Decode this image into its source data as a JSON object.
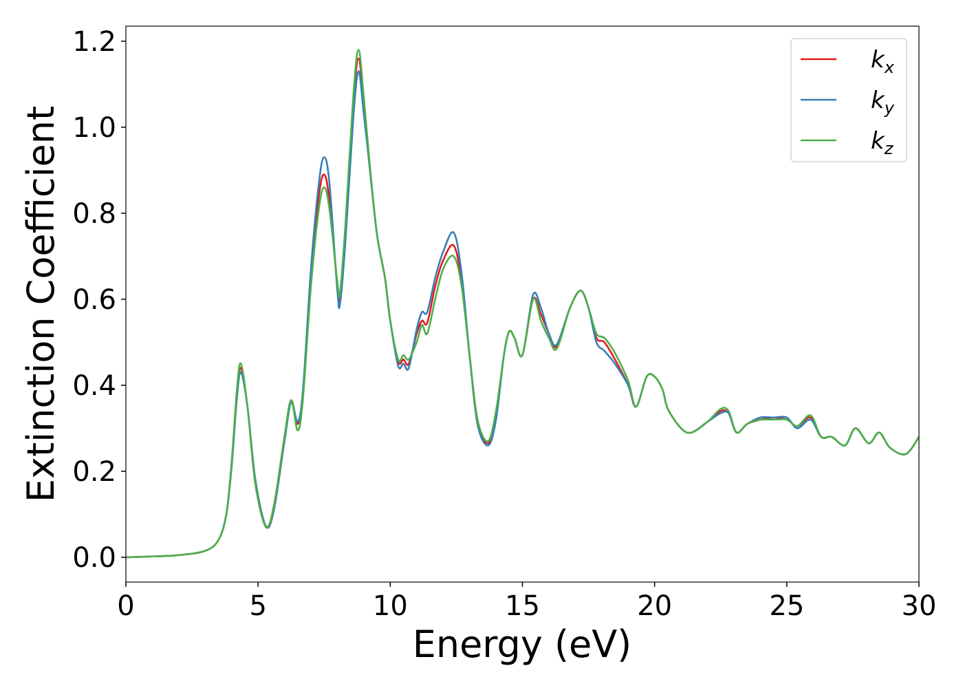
{
  "chart_data": {
    "type": "line",
    "xlabel": "Energy (eV)",
    "ylabel": "Extinction Coefficient",
    "x": [
      0,
      1,
      2,
      3,
      3.5,
      3.8,
      4.0,
      4.2,
      4.35,
      4.6,
      4.9,
      5.3,
      5.6,
      6.0,
      6.25,
      6.5,
      6.7,
      7.0,
      7.3,
      7.5,
      7.7,
      8.0,
      8.1,
      8.3,
      8.6,
      8.8,
      9.0,
      9.2,
      9.5,
      9.8,
      10.0,
      10.3,
      10.5,
      10.7,
      11.0,
      11.2,
      11.4,
      11.7,
      12.0,
      12.4,
      12.7,
      13.0,
      13.3,
      13.7,
      14.0,
      14.3,
      14.5,
      14.7,
      15.0,
      15.4,
      15.7,
      16.0,
      16.3,
      16.8,
      17.2,
      17.5,
      17.8,
      18.1,
      18.5,
      19.0,
      19.3,
      19.7,
      20.0,
      20.3,
      20.5,
      21.0,
      21.4,
      22.0,
      22.5,
      22.8,
      23.1,
      23.5,
      24.0,
      24.5,
      25.0,
      25.4,
      25.9,
      26.3,
      26.7,
      27.2,
      27.6,
      28.1,
      28.5,
      28.9,
      29.5,
      30.0
    ],
    "series": [
      {
        "name": "kx",
        "color": "#e41a1c",
        "values": [
          0,
          0.002,
          0.005,
          0.015,
          0.04,
          0.1,
          0.22,
          0.38,
          0.44,
          0.35,
          0.17,
          0.072,
          0.12,
          0.28,
          0.365,
          0.31,
          0.38,
          0.65,
          0.84,
          0.89,
          0.83,
          0.63,
          0.605,
          0.75,
          1.05,
          1.16,
          1.05,
          0.92,
          0.75,
          0.65,
          0.55,
          0.455,
          0.46,
          0.45,
          0.52,
          0.55,
          0.545,
          0.63,
          0.69,
          0.725,
          0.64,
          0.47,
          0.32,
          0.265,
          0.33,
          0.47,
          0.525,
          0.51,
          0.47,
          0.6,
          0.565,
          0.52,
          0.49,
          0.58,
          0.62,
          0.58,
          0.51,
          0.5,
          0.46,
          0.4,
          0.35,
          0.42,
          0.42,
          0.39,
          0.345,
          0.3,
          0.29,
          0.315,
          0.34,
          0.335,
          0.29,
          0.31,
          0.32,
          0.325,
          0.32,
          0.305,
          0.325,
          0.28,
          0.28,
          0.26,
          0.3,
          0.265,
          0.29,
          0.255,
          0.24,
          0.28
        ]
      },
      {
        "name": "ky",
        "color": "#377eb8",
        "values": [
          0,
          0.002,
          0.005,
          0.015,
          0.04,
          0.1,
          0.21,
          0.37,
          0.43,
          0.35,
          0.18,
          0.072,
          0.11,
          0.27,
          0.36,
          0.315,
          0.39,
          0.67,
          0.87,
          0.93,
          0.87,
          0.62,
          0.59,
          0.73,
          1.02,
          1.13,
          1.03,
          0.92,
          0.75,
          0.65,
          0.55,
          0.445,
          0.45,
          0.44,
          0.53,
          0.57,
          0.57,
          0.65,
          0.71,
          0.755,
          0.66,
          0.47,
          0.31,
          0.26,
          0.32,
          0.47,
          0.525,
          0.51,
          0.47,
          0.61,
          0.58,
          0.52,
          0.495,
          0.58,
          0.62,
          0.58,
          0.5,
          0.48,
          0.45,
          0.4,
          0.35,
          0.42,
          0.42,
          0.39,
          0.345,
          0.3,
          0.29,
          0.315,
          0.335,
          0.335,
          0.29,
          0.31,
          0.325,
          0.325,
          0.325,
          0.3,
          0.32,
          0.28,
          0.28,
          0.26,
          0.3,
          0.265,
          0.29,
          0.255,
          0.24,
          0.28
        ]
      },
      {
        "name": "kz",
        "color": "#4daf4a",
        "values": [
          0,
          0.002,
          0.005,
          0.015,
          0.04,
          0.1,
          0.22,
          0.39,
          0.45,
          0.35,
          0.17,
          0.07,
          0.12,
          0.28,
          0.365,
          0.295,
          0.37,
          0.63,
          0.81,
          0.86,
          0.81,
          0.64,
          0.615,
          0.77,
          1.07,
          1.18,
          1.07,
          0.93,
          0.75,
          0.65,
          0.55,
          0.46,
          0.47,
          0.46,
          0.5,
          0.54,
          0.52,
          0.6,
          0.67,
          0.7,
          0.63,
          0.47,
          0.32,
          0.27,
          0.34,
          0.47,
          0.525,
          0.51,
          0.47,
          0.6,
          0.55,
          0.51,
          0.485,
          0.58,
          0.62,
          0.58,
          0.52,
          0.51,
          0.475,
          0.41,
          0.35,
          0.42,
          0.42,
          0.39,
          0.345,
          0.3,
          0.29,
          0.315,
          0.345,
          0.34,
          0.29,
          0.31,
          0.32,
          0.32,
          0.32,
          0.305,
          0.33,
          0.28,
          0.28,
          0.26,
          0.3,
          0.265,
          0.29,
          0.255,
          0.24,
          0.28
        ]
      }
    ],
    "xlim": [
      0,
      30
    ],
    "xticks": [
      0,
      5,
      10,
      15,
      20,
      25,
      30
    ],
    "ylim": [
      -0.0576,
      1.235
    ],
    "yticks": [
      {
        "value": 0,
        "label": "0.0"
      },
      0.2,
      0.4,
      0.6,
      0.8,
      {
        "value": 1,
        "label": "1.0"
      },
      1.2
    ],
    "grid": false,
    "legend": "upper right"
  }
}
